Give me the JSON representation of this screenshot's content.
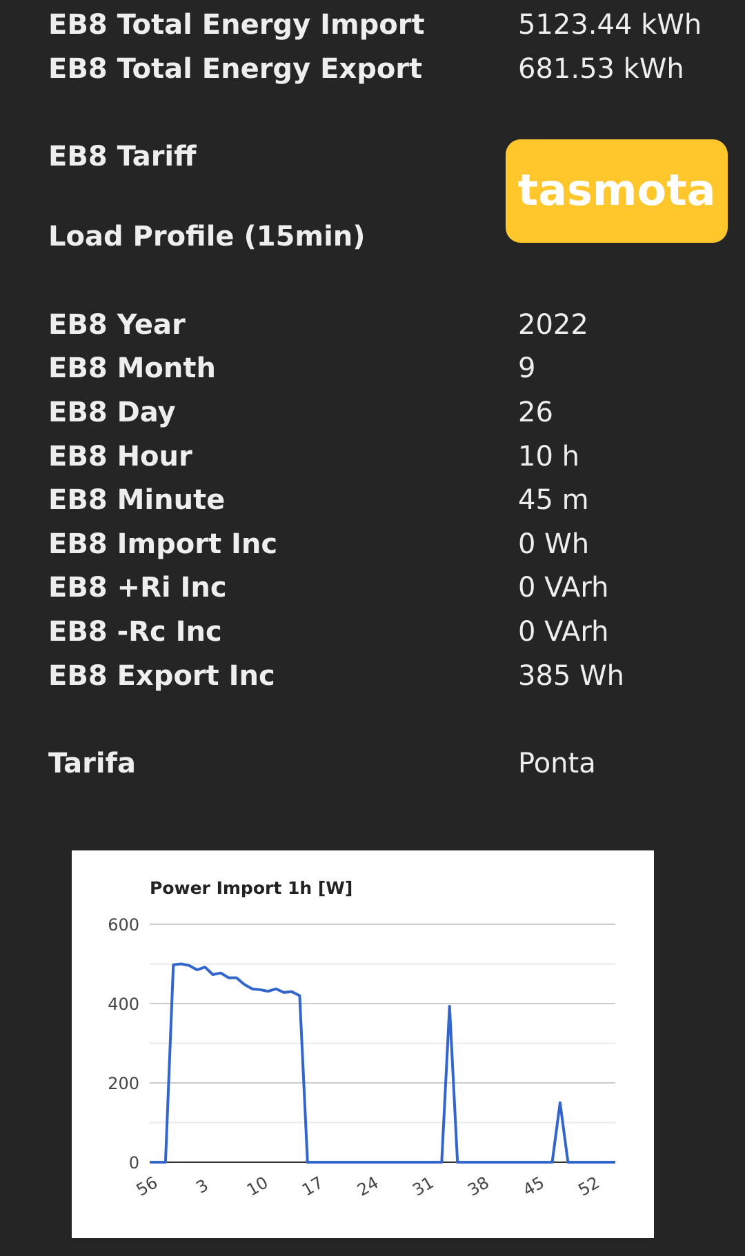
{
  "rows": [
    {
      "label": "EB8 Total Energy Import",
      "value": "5123.44 kWh"
    },
    {
      "label": "EB8 Total Energy Export",
      "value": "681.53 kWh"
    },
    {
      "label": "EB8 Tariff",
      "value": ""
    },
    {
      "label": "Load Profile (15min)",
      "value": ""
    },
    {
      "label": "EB8 Year",
      "value": "2022"
    },
    {
      "label": "EB8 Month",
      "value": "9"
    },
    {
      "label": "EB8 Day",
      "value": "26"
    },
    {
      "label": "EB8 Hour",
      "value": "10 h"
    },
    {
      "label": "EB8 Minute",
      "value": "45 m"
    },
    {
      "label": "EB8 Import Inc",
      "value": "0 Wh"
    },
    {
      "label": "EB8 +Ri Inc",
      "value": "0 VArh"
    },
    {
      "label": "EB8 -Rc Inc",
      "value": "0 VArh"
    },
    {
      "label": "EB8 Export Inc",
      "value": "385 Wh"
    },
    {
      "label": "Tarifa",
      "value": "Ponta"
    }
  ],
  "logo": {
    "text": "tasmota",
    "color": "#ffc72c"
  },
  "chart_data": {
    "type": "line",
    "title": "Power Import 1h [W]",
    "xlabel": "",
    "ylabel": "",
    "ylim": [
      0,
      600
    ],
    "yticks": [
      0,
      200,
      400,
      600
    ],
    "xtick_labels": [
      "56",
      "3",
      "10",
      "17",
      "24",
      "31",
      "38",
      "45",
      "52"
    ],
    "grid": true,
    "legend": "none",
    "series": [
      {
        "color": "#3366cc",
        "x": [
          "56",
          "57",
          "58",
          "59",
          "0",
          "1",
          "2",
          "3",
          "4",
          "5",
          "6",
          "7",
          "8",
          "9",
          "10",
          "11",
          "12",
          "13",
          "14",
          "15",
          "16",
          "17",
          "18",
          "19",
          "20",
          "21",
          "22",
          "23",
          "24",
          "25",
          "26",
          "27",
          "28",
          "29",
          "30",
          "31",
          "32",
          "33",
          "34",
          "35",
          "36",
          "37",
          "38",
          "39",
          "40",
          "41",
          "42",
          "43",
          "44",
          "45",
          "46",
          "47",
          "48",
          "49",
          "50",
          "51",
          "52",
          "53",
          "54",
          "55"
        ],
        "values": [
          0,
          0,
          0,
          498,
          500,
          496,
          485,
          492,
          473,
          477,
          465,
          465,
          448,
          437,
          435,
          431,
          437,
          428,
          430,
          420,
          0,
          0,
          0,
          0,
          0,
          0,
          0,
          0,
          0,
          0,
          0,
          0,
          0,
          0,
          0,
          0,
          0,
          0,
          393,
          0,
          0,
          0,
          0,
          0,
          0,
          0,
          0,
          0,
          0,
          0,
          0,
          0,
          150,
          0,
          0,
          0,
          0,
          0,
          0,
          0
        ]
      }
    ]
  }
}
